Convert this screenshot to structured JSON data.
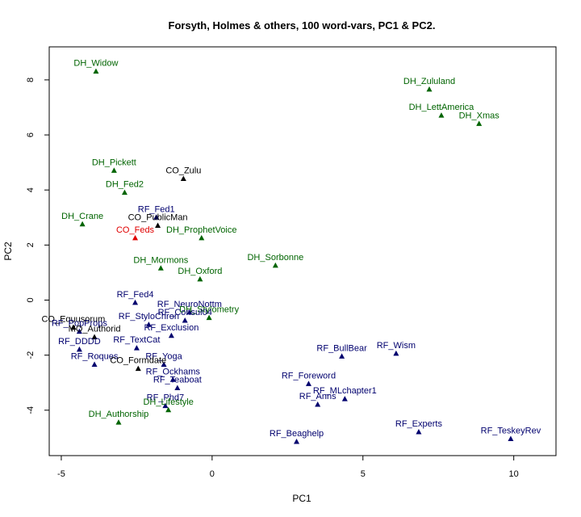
{
  "chart_data": {
    "type": "scatter",
    "title": "Forsyth, Holmes & others, 100 word-vars, PC1 & PC2.",
    "xlabel": "PC1",
    "ylabel": "PC2",
    "xlim": [
      -5.4,
      11.4
    ],
    "ylim": [
      -5.65,
      9.2
    ],
    "xticks": [
      -5,
      0,
      5,
      10
    ],
    "yticks": [
      -4,
      -2,
      0,
      2,
      4,
      6,
      8
    ],
    "grid": false,
    "legend": "none",
    "marker": "filled-triangle",
    "group_colors": {
      "DH": "#006400",
      "RF": "#00006e",
      "CO": "#000000",
      "MO": "#000000",
      "CO_Feds": "#e00000"
    },
    "points": [
      {
        "label": "DH_Widow",
        "x": -3.85,
        "y": 8.3,
        "color": "#006400"
      },
      {
        "label": "DH_Zululand",
        "x": 7.2,
        "y": 7.65,
        "color": "#006400"
      },
      {
        "label": "DH_LettAmerica",
        "x": 7.6,
        "y": 6.7,
        "color": "#006400"
      },
      {
        "label": "DH_Xmas",
        "x": 8.85,
        "y": 6.4,
        "color": "#006400"
      },
      {
        "label": "DH_Pickett",
        "x": -3.25,
        "y": 4.7,
        "color": "#006400"
      },
      {
        "label": "DH_Fed2",
        "x": -2.9,
        "y": 3.9,
        "color": "#006400"
      },
      {
        "label": "CO_Zulu",
        "x": -0.95,
        "y": 4.4,
        "color": "#000000"
      },
      {
        "label": "RF_Fed1",
        "x": -1.85,
        "y": 3.0,
        "color": "#00006e"
      },
      {
        "label": "CO_PublicMan",
        "x": -1.8,
        "y": 2.7,
        "color": "#000000"
      },
      {
        "label": "DH_Crane",
        "x": -4.3,
        "y": 2.75,
        "color": "#006400"
      },
      {
        "label": "CO_Feds",
        "x": -2.55,
        "y": 2.25,
        "color": "#e00000"
      },
      {
        "label": "DH_ProphetVoice",
        "x": -0.35,
        "y": 2.25,
        "color": "#006400"
      },
      {
        "label": "DH_Sorbonne",
        "x": 2.1,
        "y": 1.25,
        "color": "#006400"
      },
      {
        "label": "DH_Mormons",
        "x": -1.7,
        "y": 1.15,
        "color": "#006400"
      },
      {
        "label": "DH_Oxford",
        "x": -0.4,
        "y": 0.75,
        "color": "#006400"
      },
      {
        "label": "RF_Fed4",
        "x": -2.55,
        "y": -0.1,
        "color": "#00006e"
      },
      {
        "label": "RF_NeuroNottm",
        "x": -0.75,
        "y": -0.45,
        "color": "#00006e"
      },
      {
        "label": "DH_Stylometry",
        "x": -0.1,
        "y": -0.65,
        "color": "#006400"
      },
      {
        "label": "RF_StyloChron",
        "x": -2.1,
        "y": -0.9,
        "color": "#00006e"
      },
      {
        "label": "RF_Consul04",
        "x": -0.9,
        "y": -0.75,
        "color": "#00006e"
      },
      {
        "label": "CO_Equusorum",
        "x": -4.6,
        "y": -1.0,
        "color": "#000000"
      },
      {
        "label": "RF_PopProps",
        "x": -4.4,
        "y": -1.15,
        "color": "#00006e"
      },
      {
        "label": "RF_Exclusion",
        "x": -1.35,
        "y": -1.3,
        "color": "#00006e"
      },
      {
        "label": "MO_Authorid",
        "x": -3.9,
        "y": -1.35,
        "color": "#000000"
      },
      {
        "label": "RF_TextCat",
        "x": -2.5,
        "y": -1.75,
        "color": "#00006e"
      },
      {
        "label": "RF_DDDD",
        "x": -4.4,
        "y": -1.8,
        "color": "#00006e"
      },
      {
        "label": "RF_Roques",
        "x": -3.9,
        "y": -2.35,
        "color": "#00006e"
      },
      {
        "label": "RF_Yoga",
        "x": -1.6,
        "y": -2.35,
        "color": "#00006e"
      },
      {
        "label": "CO_Formdate",
        "x": -2.45,
        "y": -2.5,
        "color": "#000000"
      },
      {
        "label": "RF_Ockhams",
        "x": -1.3,
        "y": -2.9,
        "color": "#00006e"
      },
      {
        "label": "RF_Teaboat",
        "x": -1.15,
        "y": -3.2,
        "color": "#00006e"
      },
      {
        "label": "RF_Phd7",
        "x": -1.55,
        "y": -3.85,
        "color": "#00006e"
      },
      {
        "label": "DH_Lifestyle",
        "x": -1.45,
        "y": -4.0,
        "color": "#006400"
      },
      {
        "label": "DH_Authorship",
        "x": -3.1,
        "y": -4.45,
        "color": "#006400"
      },
      {
        "label": "RF_BullBear",
        "x": 4.3,
        "y": -2.05,
        "color": "#00006e"
      },
      {
        "label": "RF_Wism",
        "x": 6.1,
        "y": -1.95,
        "color": "#00006e"
      },
      {
        "label": "RF_Foreword",
        "x": 3.2,
        "y": -3.05,
        "color": "#00006e"
      },
      {
        "label": "RF_MLchapter1",
        "x": 4.4,
        "y": -3.6,
        "color": "#00006e"
      },
      {
        "label": "RF_Anns",
        "x": 3.5,
        "y": -3.8,
        "color": "#00006e"
      },
      {
        "label": "RF_Experts",
        "x": 6.85,
        "y": -4.8,
        "color": "#00006e"
      },
      {
        "label": "RF_Beaghelp",
        "x": 2.8,
        "y": -5.15,
        "color": "#00006e"
      },
      {
        "label": "RF_TeskeyRev",
        "x": 9.9,
        "y": -5.05,
        "color": "#00006e"
      }
    ]
  }
}
